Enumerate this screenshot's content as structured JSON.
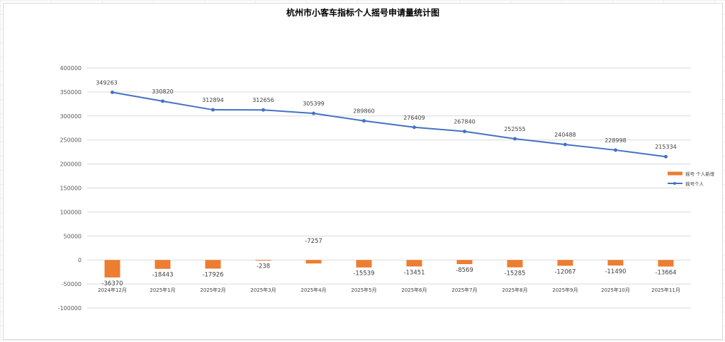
{
  "chart_data": {
    "type": "bar+line",
    "title": "杭州市小客车指标个人摇号申请量统计图",
    "categories": [
      "2024年12月",
      "2025年1月",
      "2025年2月",
      "2025年3月",
      "2025年4月",
      "2025年5月",
      "2025年6月",
      "2025年7月",
      "2025年8月",
      "2025年9月",
      "2025年10月",
      "2025年11月"
    ],
    "series": [
      {
        "name": "摇号 个人新增",
        "type": "bar",
        "color": "#ED7D31",
        "values": [
          -36370,
          -18443,
          -17926,
          -238,
          -7257,
          -15539,
          -13451,
          -8569,
          -15285,
          -12067,
          -11490,
          -13664
        ]
      },
      {
        "name": "摇号个人",
        "type": "line",
        "color": "#4472C4",
        "values": [
          349263,
          330820,
          312894,
          312656,
          305399,
          289860,
          276409,
          267840,
          252555,
          240488,
          228998,
          215334
        ]
      }
    ],
    "ylim": [
      -100000,
      400000
    ],
    "yticks": [
      400000,
      350000,
      300000,
      250000,
      200000,
      150000,
      100000,
      50000,
      0,
      -50000,
      -100000
    ],
    "grid": true,
    "legend": "right"
  }
}
